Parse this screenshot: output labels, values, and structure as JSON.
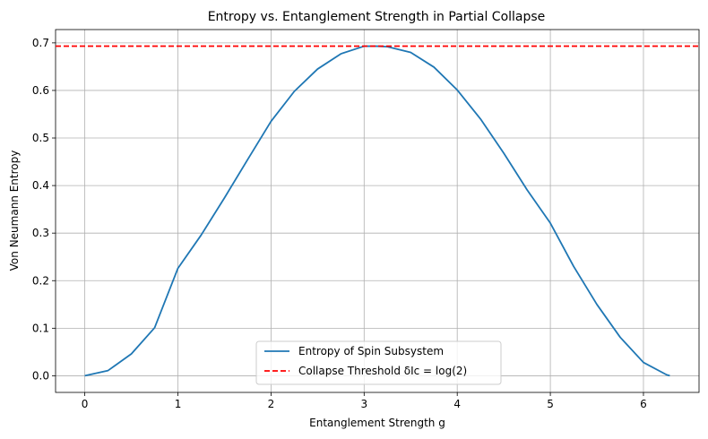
{
  "chart_data": {
    "type": "line",
    "title": "Entropy vs. Entanglement Strength in Partial Collapse",
    "xlabel": "Entanglement Strength g",
    "ylabel": "Von Neumann Entropy",
    "xlim": [
      -0.314,
      6.597
    ],
    "ylim": [
      -0.035,
      0.728
    ],
    "xticks": [
      0,
      1,
      2,
      3,
      4,
      5,
      6
    ],
    "yticks": [
      0.0,
      0.1,
      0.2,
      0.3,
      0.4,
      0.5,
      0.6,
      0.7
    ],
    "xtick_labels": [
      "0",
      "1",
      "2",
      "3",
      "4",
      "5",
      "6"
    ],
    "ytick_labels": [
      "0.0",
      "0.1",
      "0.2",
      "0.3",
      "0.4",
      "0.5",
      "0.6",
      "0.7"
    ],
    "grid": true,
    "legend_position": "bottom-center",
    "series": [
      {
        "name": "Entropy of Spin Subsystem",
        "color": "#1f77b4",
        "style": "solid",
        "x": [
          0.0,
          0.25,
          0.5,
          0.75,
          1.0,
          1.25,
          1.5,
          1.75,
          2.0,
          2.25,
          2.5,
          2.75,
          3.0,
          3.1416,
          3.25,
          3.5,
          3.75,
          4.0,
          4.25,
          4.5,
          4.75,
          5.0,
          5.25,
          5.5,
          5.75,
          6.0,
          6.25,
          6.2832
        ],
        "y": [
          0.0,
          0.011,
          0.046,
          0.101,
          0.226,
          0.296,
          0.374,
          0.455,
          0.535,
          0.598,
          0.645,
          0.677,
          0.693,
          0.693,
          0.692,
          0.68,
          0.649,
          0.601,
          0.54,
          0.468,
          0.391,
          0.321,
          0.23,
          0.15,
          0.081,
          0.028,
          0.002,
          0.0
        ]
      },
      {
        "name": "Collapse Threshold δIc = log(2)",
        "color": "#ff0000",
        "style": "dashed",
        "x": [
          -0.314,
          6.597
        ],
        "y": [
          0.6931,
          0.6931
        ]
      }
    ]
  }
}
